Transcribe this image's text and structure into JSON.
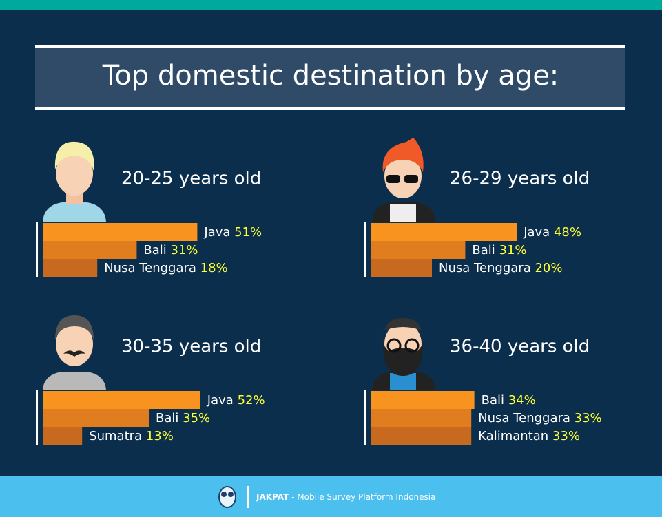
{
  "title": "Top domestic destination by age:",
  "chart_data": [
    {
      "type": "bar",
      "title": "20-25 years old",
      "categories": [
        "Java",
        "Bali",
        "Nusa Tenggara"
      ],
      "values": [
        51,
        31,
        18
      ],
      "value_labels": [
        "51%",
        "31%",
        "18%"
      ],
      "colors": [
        "#f7931e",
        "#e07d1f",
        "#c76a1f"
      ]
    },
    {
      "type": "bar",
      "title": "26-29 years old",
      "categories": [
        "Java",
        "Bali",
        "Nusa Tenggara"
      ],
      "values": [
        48,
        31,
        20
      ],
      "value_labels": [
        "48%",
        "31%",
        "20%"
      ],
      "colors": [
        "#f7931e",
        "#e07d1f",
        "#c76a1f"
      ]
    },
    {
      "type": "bar",
      "title": "30-35 years old",
      "categories": [
        "Java",
        "Bali",
        "Sumatra"
      ],
      "values": [
        52,
        35,
        13
      ],
      "value_labels": [
        "52%",
        "35%",
        "13%"
      ],
      "colors": [
        "#f7931e",
        "#e07d1f",
        "#c76a1f"
      ]
    },
    {
      "type": "bar",
      "title": "36-40 years old",
      "categories": [
        "Bali",
        "Nusa Tenggara",
        "Kalimantan"
      ],
      "values": [
        34,
        33,
        33
      ],
      "value_labels": [
        "34%",
        "33%",
        "33%"
      ],
      "colors": [
        "#f7931e",
        "#e07d1f",
        "#c76a1f"
      ]
    }
  ],
  "footer": {
    "brand": "JAKPAT",
    "tagline": "- Mobile Survey Platform Indonesia"
  }
}
